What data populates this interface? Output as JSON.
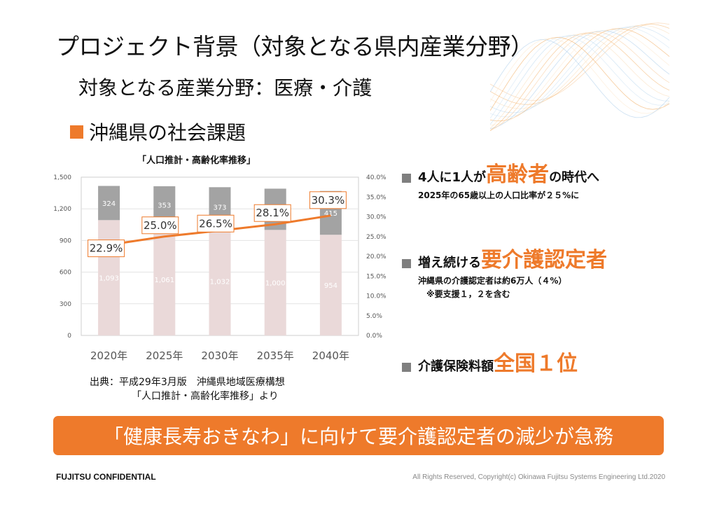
{
  "header": {
    "title": "プロジェクト背景（対象となる県内産業分野）",
    "subtitle": "対象となる産業分野：医療・介護"
  },
  "section": {
    "heading": "沖縄県の社会課題"
  },
  "chart_data": {
    "type": "bar",
    "title": "「人口推計・高齢化率推移」",
    "categories": [
      "2020年",
      "2025年",
      "2030年",
      "2035年",
      "2040年"
    ],
    "series": [
      {
        "values": [
          1093,
          1061,
          1032,
          1000,
          954
        ],
        "color": "#ead9d9"
      },
      {
        "values": [
          324,
          353,
          373,
          391,
          415
        ],
        "color": "#a3a3a3"
      }
    ],
    "line_series": {
      "values": [
        22.9,
        25.0,
        26.5,
        28.1,
        30.3
      ],
      "labels": [
        "22.9%",
        "25.0%",
        "26.5%",
        "28.1%",
        "30.3%"
      ],
      "color": "#ee7a2b"
    },
    "ylim": [
      0,
      1500
    ],
    "yticks": [
      "0",
      "300",
      "600",
      "900",
      "1,200",
      "1,500"
    ],
    "y2lim": [
      0,
      40
    ],
    "y2ticks": [
      "0.0%",
      "5.0%",
      "10.0%",
      "15.0%",
      "20.0%",
      "25.0%",
      "30.0%",
      "35.0%",
      "40.0%"
    ],
    "bar_labels_bottom": [
      "1,093",
      "1,061",
      "1,032",
      "1,000",
      "954"
    ],
    "bar_labels_top": [
      "324",
      "353",
      "373",
      "391",
      "415"
    ],
    "grid": true
  },
  "source": {
    "line1": "出典：平成29年3月版　沖縄県地域医療構想",
    "line2": "「人口推計・高齢化率推移」より"
  },
  "points": [
    {
      "lead": "4人に1人が",
      "highlight": "高齢者",
      "tail": "の時代へ",
      "sub": [
        "2025年の65歳以上の人口比率が２５%に"
      ]
    },
    {
      "lead": "増え続ける",
      "highlight": "要介護認定者",
      "tail": "",
      "sub": [
        "沖縄県の介護認定者は約6万人（４%）",
        "※要支援１，２を含む"
      ]
    },
    {
      "lead": "介護保険料額",
      "highlight": "全国１位",
      "tail": "",
      "sub": []
    }
  ],
  "banner": {
    "text": "「健康長寿おきなわ」に向けて要介護認定者の減少が急務"
  },
  "footer": {
    "confidential": "FUJITSU CONFIDENTIAL",
    "copyright": "All Rights Reserved, Copyright(c) Okinawa Fujitsu Systems Engineering Ltd.2020"
  },
  "colors": {
    "accent": "#ee7a2b",
    "bullet": "#7f7f7f",
    "bar_light": "#ead9d9",
    "bar_dark": "#a3a3a3"
  }
}
